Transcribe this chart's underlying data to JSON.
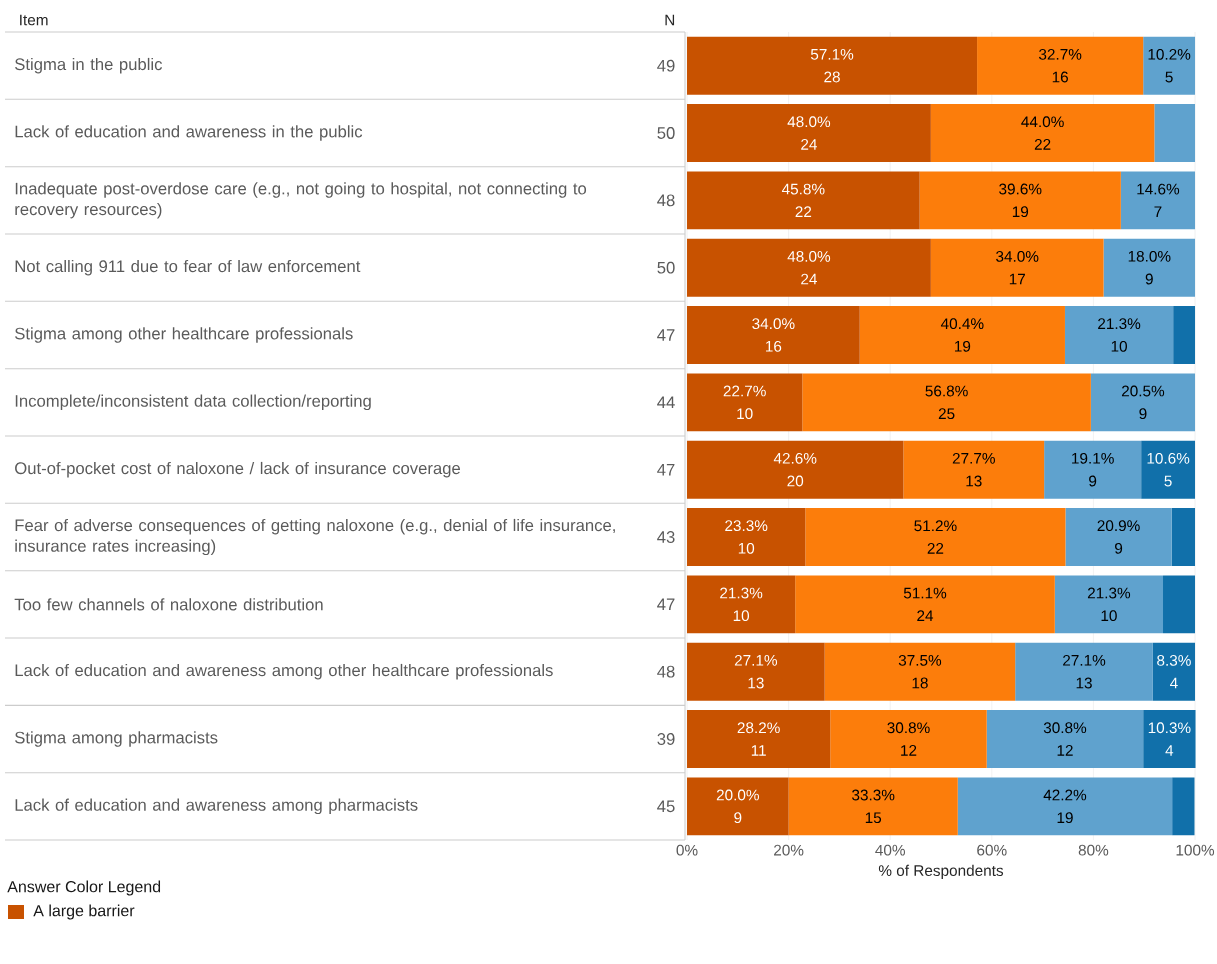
{
  "chart_data": {
    "type": "bar",
    "orientation": "horizontal",
    "stacked": true,
    "ylabel": "Item",
    "y2label": "N",
    "xlabel": "% of Respondents",
    "legend_title": "Answer Color Legend",
    "legend": "bottom left",
    "grid": "x",
    "categories": [
      "Stigma in the public",
      "Lack of education and awareness in the public",
      "Inadequate post-overdose care (e.g., not going to hospital, not connecting to recovery resources)",
      "Not calling 911 due to fear of law enforcement",
      "Stigma among other healthcare professionals",
      "Incomplete/inconsistent data collection/reporting",
      "Out-of-pocket cost of naloxone / lack of insurance coverage",
      "Fear of adverse consequences of getting naloxone (e.g., denial of life insurance, insurance rates increasing)",
      "Too few channels of naloxone distribution",
      "Lack of education and awareness among other healthcare professionals",
      "Stigma among pharmacists",
      "Lack of education and awareness among pharmacists"
    ],
    "y2_categories": [
      "49",
      "50",
      "48",
      "50",
      "47",
      "44",
      "47",
      "43",
      "47",
      "48",
      "39",
      "45"
    ],
    "xlim": [
      0,
      100
    ],
    "xticks": [
      {
        "value": 0,
        "label": "0%"
      },
      {
        "value": 20,
        "label": "20%"
      },
      {
        "value": 40,
        "label": "40%"
      },
      {
        "value": 60,
        "label": "60%"
      },
      {
        "value": 80,
        "label": "80%"
      },
      {
        "value": 100,
        "label": "100%"
      }
    ],
    "series": [
      {
        "name": "A large barrier",
        "color": "#c85200",
        "values": [
          57.1,
          48.0,
          45.8,
          48.0,
          34.0,
          22.7,
          42.6,
          23.3,
          21.3,
          27.1,
          28.2,
          20.0
        ],
        "value_labels": [
          [
            "57.1%",
            "28"
          ],
          [
            "48.0%",
            "24"
          ],
          [
            "45.8%",
            "22"
          ],
          [
            "48.0%",
            "24"
          ],
          [
            "34.0%",
            "16"
          ],
          [
            "22.7%",
            "10"
          ],
          [
            "42.6%",
            "20"
          ],
          [
            "23.3%",
            "10"
          ],
          [
            "21.3%",
            "10"
          ],
          [
            "27.1%",
            "13"
          ],
          [
            "28.2%",
            "11"
          ],
          [
            "20.0%",
            "9"
          ]
        ]
      },
      {
        "color": "#fc7d0b",
        "values": [
          32.7,
          44.0,
          39.6,
          34.0,
          40.4,
          56.8,
          27.7,
          51.2,
          51.1,
          37.5,
          30.8,
          33.3
        ],
        "value_labels": [
          [
            "32.7%",
            "16"
          ],
          [
            "44.0%",
            "22"
          ],
          [
            "39.6%",
            "19"
          ],
          [
            "34.0%",
            "17"
          ],
          [
            "40.4%",
            "19"
          ],
          [
            "56.8%",
            "25"
          ],
          [
            "27.7%",
            "13"
          ],
          [
            "51.2%",
            "22"
          ],
          [
            "51.1%",
            "24"
          ],
          [
            "37.5%",
            "18"
          ],
          [
            "30.8%",
            "12"
          ],
          [
            "33.3%",
            "15"
          ]
        ]
      },
      {
        "color": "#5fa2ce",
        "values": [
          10.2,
          8.0,
          14.6,
          18.0,
          21.3,
          20.5,
          19.1,
          20.9,
          21.3,
          27.1,
          30.8,
          42.2
        ],
        "value_labels": [
          [
            "10.2%",
            "5"
          ],
          null,
          [
            "14.6%",
            "7"
          ],
          [
            "18.0%",
            "9"
          ],
          [
            "21.3%",
            "10"
          ],
          [
            "20.5%",
            "9"
          ],
          [
            "19.1%",
            "9"
          ],
          [
            "20.9%",
            "9"
          ],
          [
            "21.3%",
            "10"
          ],
          [
            "27.1%",
            "13"
          ],
          [
            "30.8%",
            "12"
          ],
          [
            "42.2%",
            "19"
          ]
        ]
      },
      {
        "color": "#1170aa",
        "values": [
          0,
          0,
          0,
          0,
          4.3,
          0,
          10.6,
          4.6,
          6.3,
          8.3,
          10.3,
          4.4
        ],
        "value_labels": [
          null,
          null,
          null,
          null,
          null,
          null,
          [
            "10.6%",
            "5"
          ],
          null,
          null,
          [
            "8.3%",
            "4"
          ],
          [
            "10.3%",
            "4"
          ],
          null
        ]
      }
    ]
  }
}
